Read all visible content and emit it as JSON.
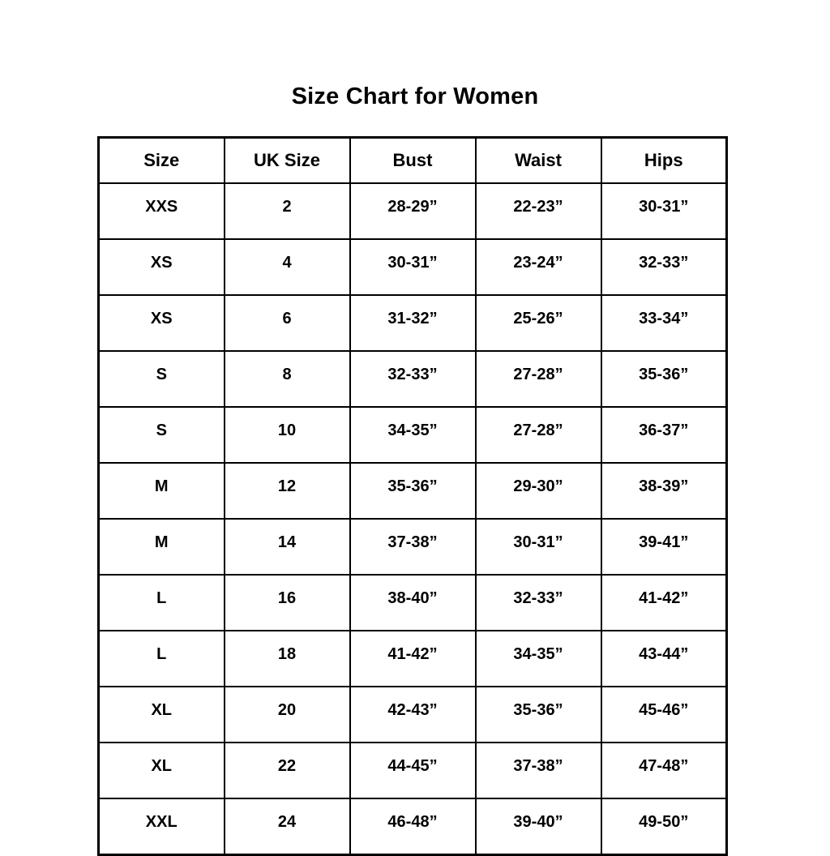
{
  "page": {
    "title": "Size Chart for Women"
  },
  "table": {
    "headers": [
      "Size",
      "UK Size",
      "Bust",
      "Waist",
      "Hips"
    ],
    "rows": [
      [
        "XXS",
        "2",
        "28-29”",
        "22-23”",
        "30-31”"
      ],
      [
        "XS",
        "4",
        "30-31”",
        "23-24”",
        "32-33”"
      ],
      [
        "XS",
        "6",
        "31-32”",
        "25-26”",
        "33-34”"
      ],
      [
        "S",
        "8",
        "32-33”",
        "27-28”",
        "35-36”"
      ],
      [
        "S",
        "10",
        "34-35”",
        "27-28”",
        "36-37”"
      ],
      [
        "M",
        "12",
        "35-36”",
        "29-30”",
        "38-39”"
      ],
      [
        "M",
        "14",
        "37-38”",
        "30-31”",
        "39-41”"
      ],
      [
        "L",
        "16",
        "38-40”",
        "32-33”",
        "41-42”"
      ],
      [
        "L",
        "18",
        "41-42”",
        "34-35”",
        "43-44”"
      ],
      [
        "XL",
        "20",
        "42-43”",
        "35-36”",
        "45-46”"
      ],
      [
        "XL",
        "22",
        "44-45”",
        "37-38”",
        "47-48”"
      ],
      [
        "XXL",
        "24",
        "46-48”",
        "39-40”",
        "49-50”"
      ]
    ]
  }
}
